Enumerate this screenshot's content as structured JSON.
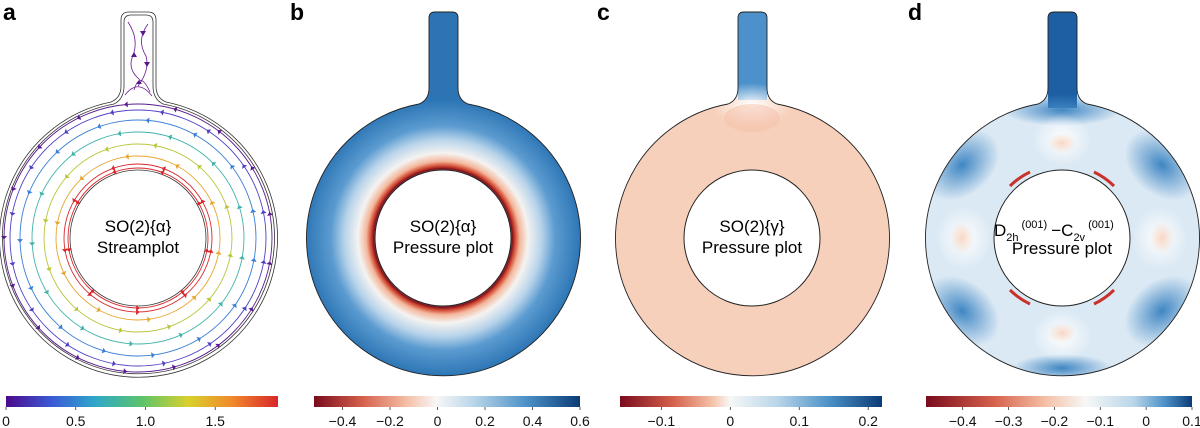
{
  "panels": [
    {
      "label": "a",
      "kind": "streamplot",
      "title_line1": "SO(2){α}",
      "title_line2": "Streamplot",
      "colorbar": {
        "ticks": [
          "0",
          "0.5",
          "1.0",
          "1.5"
        ],
        "tick_values": [
          0,
          0.5,
          1.0,
          1.5
        ],
        "range": [
          0,
          1.95
        ],
        "colors": [
          "#4b0a8c",
          "#3b5bd6",
          "#2fa8c8",
          "#5cc36a",
          "#d9d12d",
          "#f08a2c",
          "#d9262a"
        ]
      }
    },
    {
      "label": "b",
      "kind": "pressure",
      "title_line1": "SO(2){α}",
      "title_line2": "Pressure plot",
      "colorbar": {
        "ticks": [
          "−0.4",
          "−0.2",
          "0",
          "0.2",
          "0.4",
          "0.6"
        ],
        "tick_values": [
          -0.4,
          -0.2,
          0,
          0.2,
          0.4,
          0.6
        ],
        "range": [
          -0.52,
          0.6
        ]
      }
    },
    {
      "label": "c",
      "kind": "pressure",
      "title_line1": "SO(2){γ}",
      "title_line2": "Pressure plot",
      "colorbar": {
        "ticks": [
          "−0.1",
          "0",
          "0.1",
          "0.2"
        ],
        "tick_values": [
          -0.1,
          0,
          0.1,
          0.2
        ],
        "range": [
          -0.16,
          0.22
        ]
      }
    },
    {
      "label": "d",
      "kind": "pressure",
      "title_main_a": "D",
      "title_sub_a": "2h",
      "title_sup_a": "(001)",
      "title_dash": "−C",
      "title_sub_b": "2v",
      "title_sup_b": "(001)",
      "title_line2": "Pressure plot",
      "colorbar": {
        "ticks": [
          "−0.4",
          "−0.3",
          "−0.2",
          "−0.1",
          "0",
          "0.1"
        ],
        "tick_values": [
          -0.4,
          -0.3,
          -0.2,
          -0.1,
          0,
          0.1
        ],
        "range": [
          -0.48,
          0.1
        ]
      }
    }
  ],
  "colors": {
    "diverging_neg": "#8b0e1f",
    "diverging_mid": "#f7f7f7",
    "diverging_pos": "#0d3f7a",
    "pressure_blue": "#2f78b8",
    "pressure_salmon": "#f6cdb8",
    "pressure_light_blue": "#4f94cc",
    "ring_red": "#c9322a",
    "outline": "#222222"
  }
}
